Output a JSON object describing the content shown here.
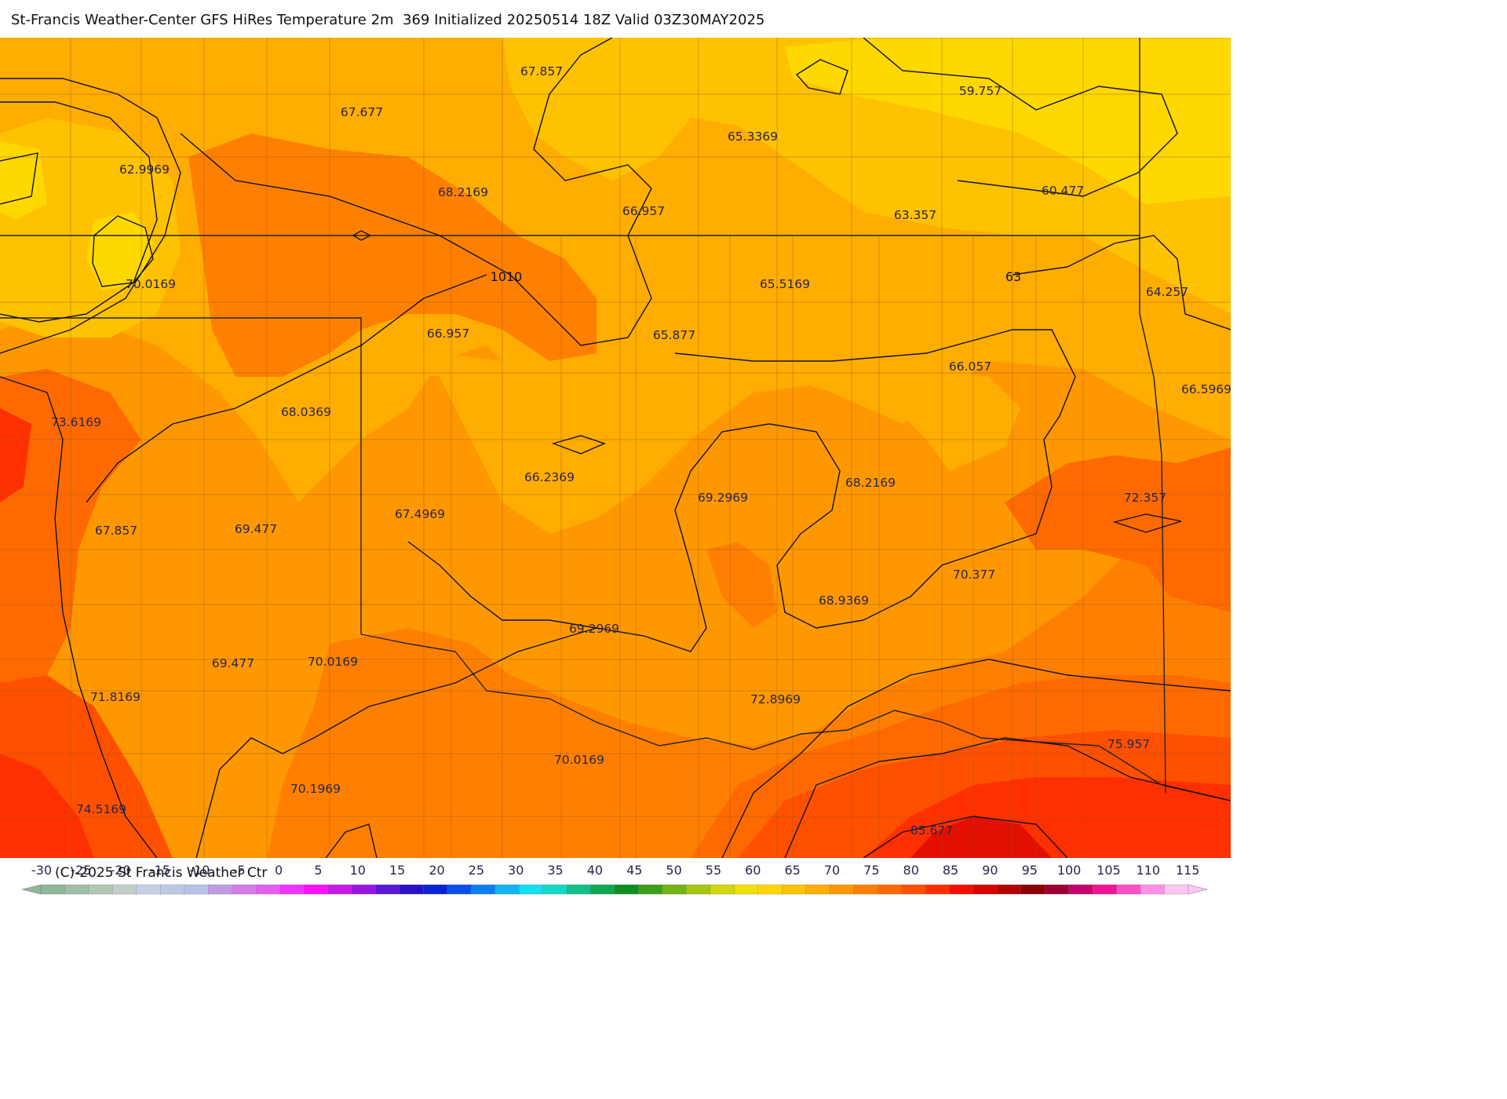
{
  "title": "St-Francis Weather-Center GFS HiRes Temperature 2m  369 Initialized 20250514 18Z Valid 03Z30MAY2025",
  "copyright": "(C)-2025 St Francis Weather Ctr",
  "value_labels": [
    "67.857",
    "67.677",
    "62.9969",
    "68.2169",
    "65.3369",
    "59.757",
    "60.477",
    "66.957",
    "63.357",
    "70.0169",
    "65.5169",
    "64.257",
    "66.957",
    "65.877",
    "66.057",
    "66.5969",
    "73.6169",
    "68.0369",
    "66.2369",
    "69.2969",
    "68.2169",
    "72.357",
    "67.857",
    "69.477",
    "67.4969",
    "70.377",
    "68.9369",
    "69.2969",
    "69.477",
    "70.0169",
    "71.8169",
    "72.8969",
    "75.957",
    "70.0169",
    "70.1969",
    "74.5169",
    "85.677"
  ],
  "isobar_labels": [
    "1010",
    "63"
  ],
  "colorbar": {
    "ticks": [
      "-30",
      "-25",
      "-20",
      "-15",
      "-10",
      "-5",
      "0",
      "5",
      "10",
      "15",
      "20",
      "25",
      "30",
      "35",
      "40",
      "45",
      "50",
      "55",
      "60",
      "65",
      "70",
      "75",
      "80",
      "85",
      "90",
      "95",
      "100",
      "105",
      "110",
      "115"
    ],
    "colors": [
      "#8fb79a",
      "#9fbfa6",
      "#b2c6b4",
      "#c3ccc8",
      "#c7cfe3",
      "#bcc8e6",
      "#b7c2ea",
      "#c09be4",
      "#d57ce6",
      "#e35ff0",
      "#ee35ff",
      "#ff10ff",
      "#c81ae6",
      "#9a16e0",
      "#5b16d8",
      "#2a10c8",
      "#0b22d6",
      "#0a4fe6",
      "#0a80ee",
      "#12b4f2",
      "#10e0f0",
      "#14d8c6",
      "#10c08a",
      "#0ea850",
      "#0c8f20",
      "#3aa116",
      "#72b412",
      "#a6c810",
      "#d2d60c",
      "#f0e00a",
      "#ffd800",
      "#ffc200",
      "#ffad00",
      "#ff9800",
      "#ff8000",
      "#ff6a00",
      "#ff5000",
      "#ff3000",
      "#f01000",
      "#d80000",
      "#b40000",
      "#8c0000",
      "#9a0032",
      "#c8006c",
      "#f01496",
      "#ff50c8",
      "#ff90e6",
      "#ffc6f4"
    ]
  },
  "map_colors": {
    "temp_60": "#ffd800",
    "temp_62": "#ffc200",
    "temp_65": "#ffad00",
    "temp_67": "#ff9800",
    "temp_70": "#ff8000",
    "temp_72": "#ff6a00",
    "temp_75": "#ff5000",
    "temp_80": "#ff3000",
    "temp_85": "#f01000"
  }
}
